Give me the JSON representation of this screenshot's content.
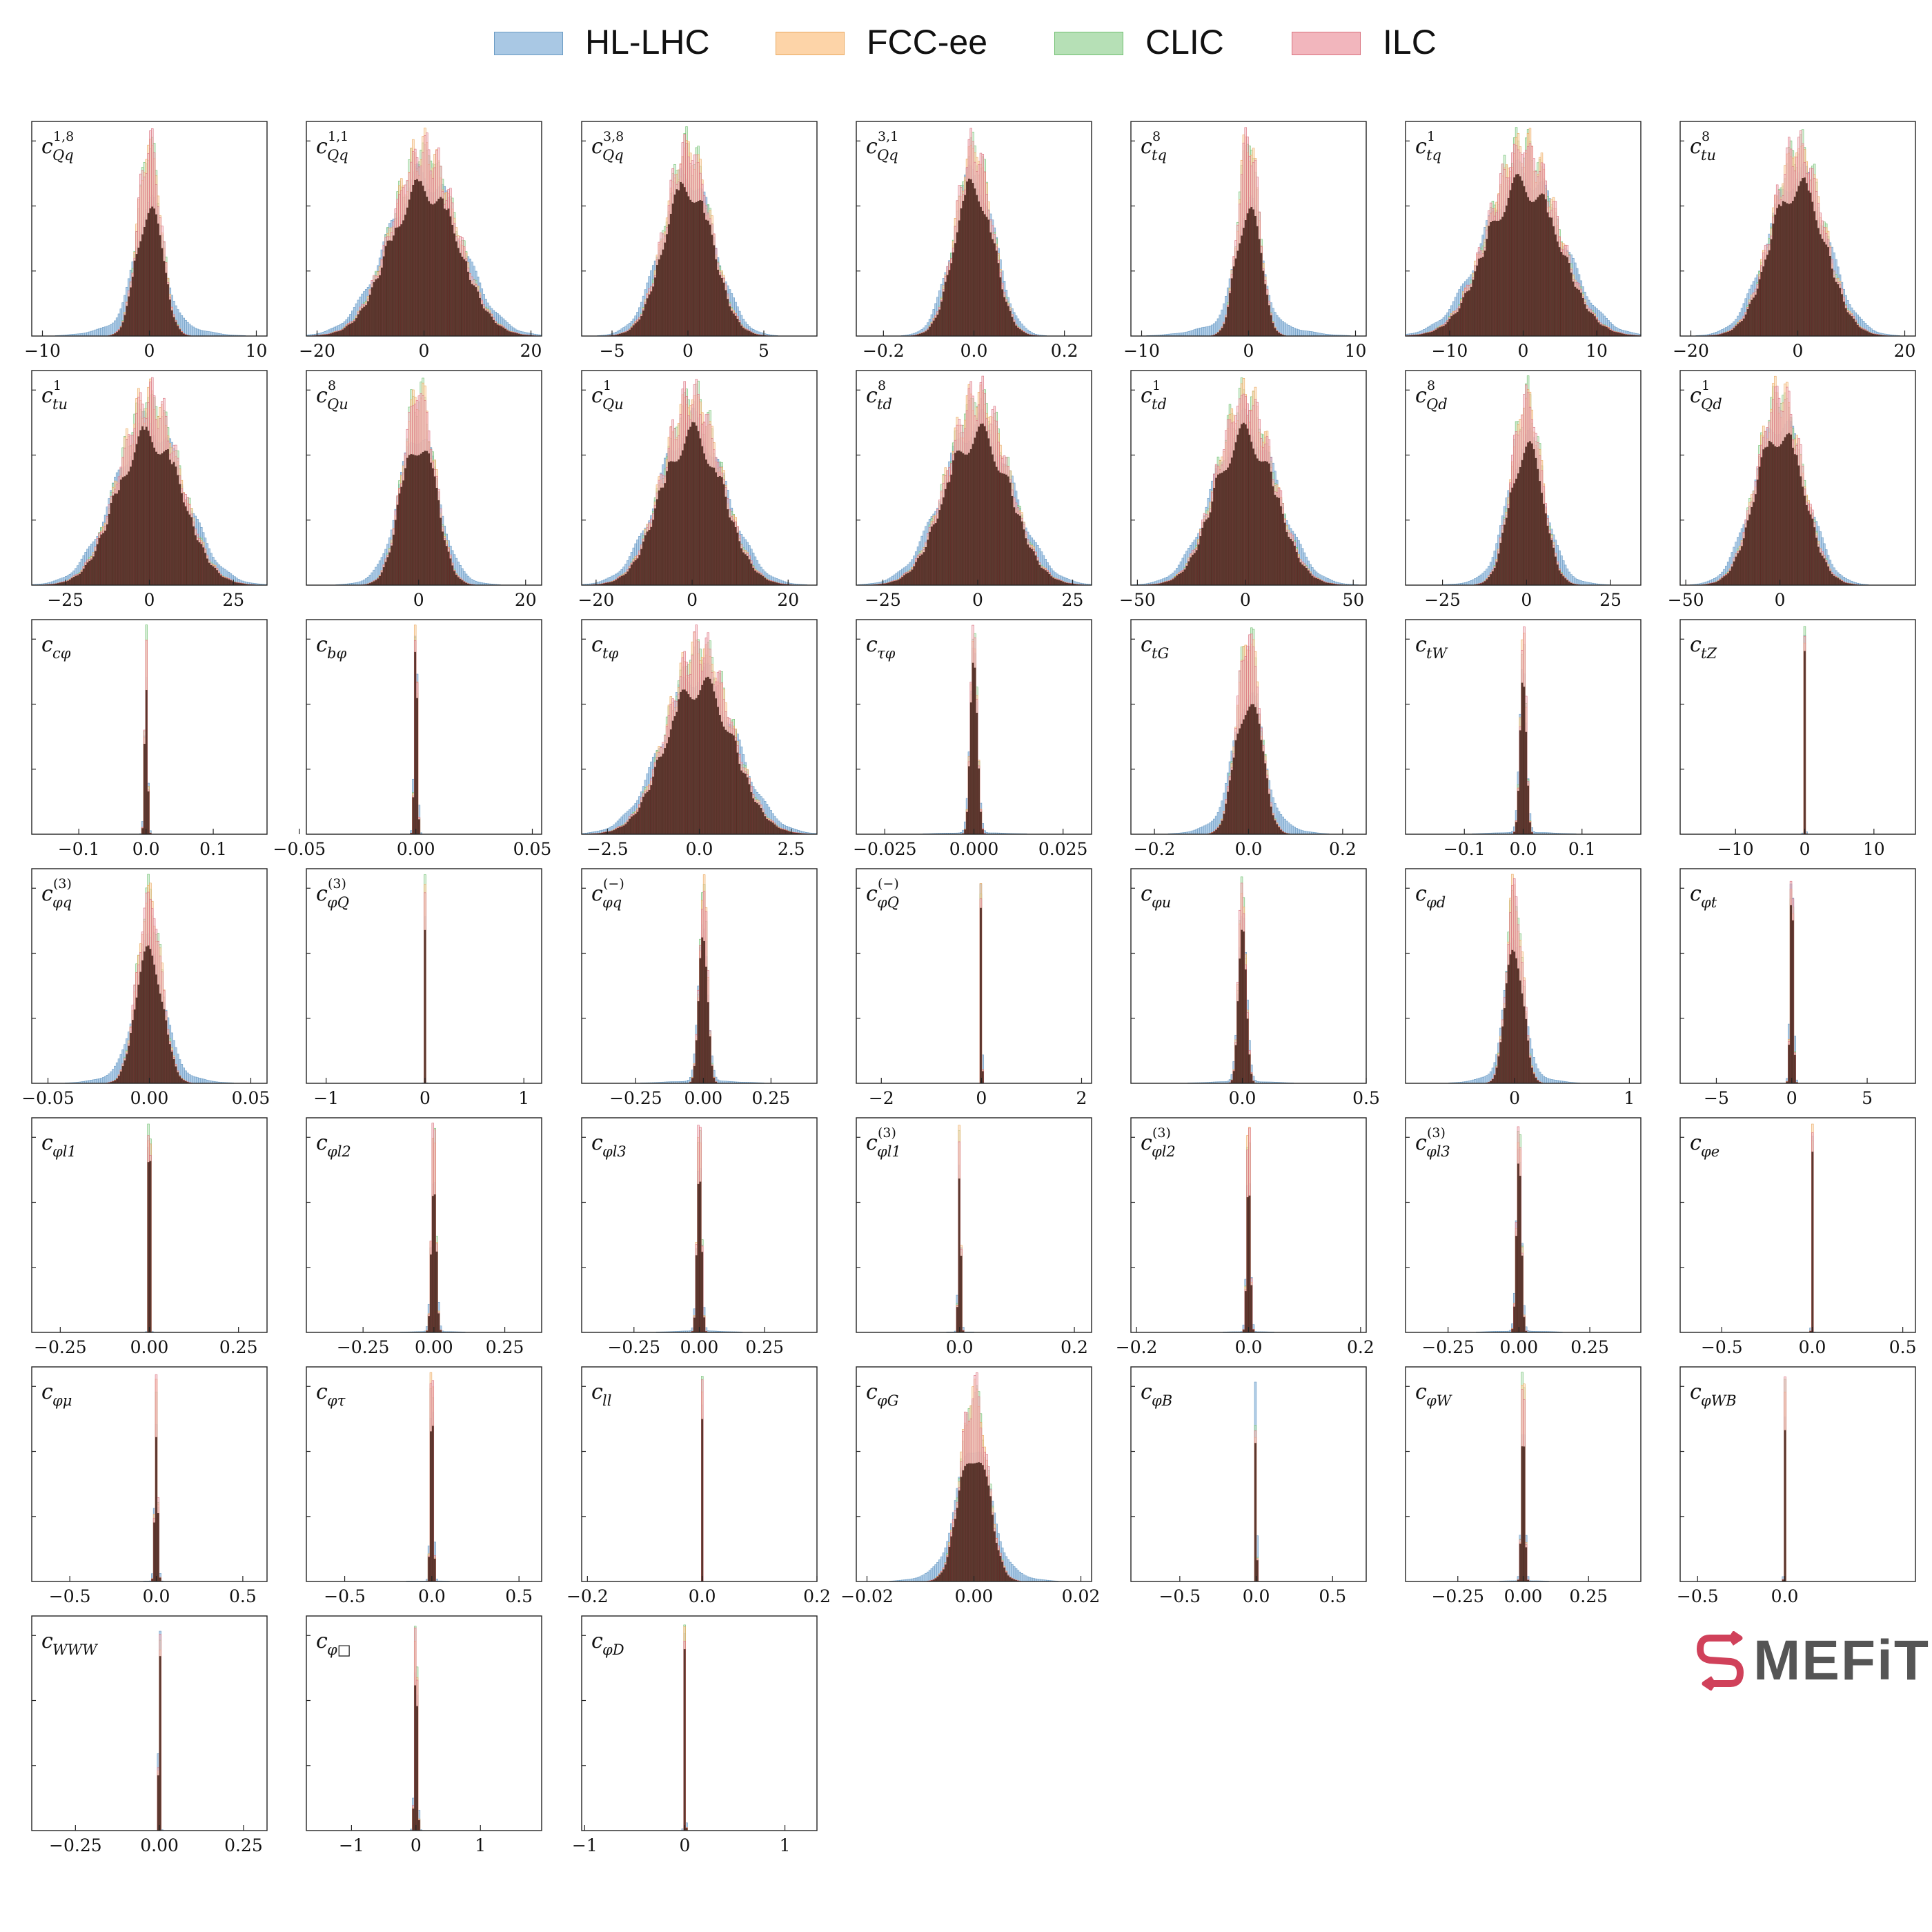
{
  "legend": [
    {
      "name": "HL-LHC",
      "color": "#a9c8e4",
      "edge": "#6a9bc4"
    },
    {
      "name": "FCC-ee",
      "color": "#fdd4a8",
      "edge": "#e8a85e"
    },
    {
      "name": "CLIC",
      "color": "#b6e0b6",
      "edge": "#6fbf6f"
    },
    {
      "name": "ILC",
      "color": "#f2b6bd",
      "edge": "#d9707d"
    }
  ],
  "logo": {
    "text": "MEFiT"
  },
  "chart_data": [
    {
      "type": "bar",
      "label_base": "c",
      "label_sub": "Qq",
      "label_sup": "1,8",
      "xlim": [
        -11,
        11
      ],
      "ticks": [
        "-10",
        "0",
        "10"
      ],
      "tick_values": [
        -10,
        0,
        10
      ],
      "sigma_wide": 3.2,
      "sigma_narrow": 1.1,
      "tail": 0.3
    },
    {
      "type": "bar",
      "label_base": "c",
      "label_sub": "Qq",
      "label_sup": "1,1",
      "xlim": [
        -22,
        22
      ],
      "ticks": [
        "-20",
        "0",
        "20"
      ],
      "tick_values": [
        -20,
        0,
        20
      ],
      "sigma_wide": 6.5,
      "sigma_narrow": 6.0,
      "tail": 0.0
    },
    {
      "type": "bar",
      "label_base": "c",
      "label_sub": "Qq",
      "label_sup": "3,8",
      "xlim": [
        -7,
        8.5
      ],
      "ticks": [
        "-5",
        "0",
        "5"
      ],
      "tick_values": [
        -5,
        0,
        5
      ],
      "sigma_wide": 1.8,
      "sigma_narrow": 1.5,
      "tail": 0.0
    },
    {
      "type": "bar",
      "label_base": "c",
      "label_sub": "Qq",
      "label_sup": "3,1",
      "xlim": [
        -0.26,
        0.26
      ],
      "ticks": [
        "-0.2",
        "0.0",
        "0.2"
      ],
      "tick_values": [
        -0.2,
        0,
        0.2
      ],
      "sigma_wide": 0.07,
      "sigma_narrow": 0.04,
      "tail": 0.0
    },
    {
      "type": "bar",
      "label_base": "c",
      "label_sub": "tq",
      "label_sup": "8",
      "xlim": [
        -11,
        11
      ],
      "ticks": [
        "-10",
        "0",
        "10"
      ],
      "tick_values": [
        -10,
        0,
        10
      ],
      "sigma_wide": 3.5,
      "sigma_narrow": 1.0,
      "tail": 0.3
    },
    {
      "type": "bar",
      "label_base": "c",
      "label_sub": "tq",
      "label_sup": "1",
      "xlim": [
        -16,
        16
      ],
      "ticks": [
        "-10",
        "0",
        "10"
      ],
      "tick_values": [
        -10,
        0,
        10
      ],
      "sigma_wide": 5.0,
      "sigma_narrow": 4.6,
      "tail": 0.0
    },
    {
      "type": "bar",
      "label_base": "c",
      "label_sub": "tu",
      "label_sup": "8",
      "xlim": [
        -22,
        22
      ],
      "ticks": [
        "-20",
        "0",
        "20"
      ],
      "tick_values": [
        -20,
        0,
        20
      ],
      "sigma_wide": 6.0,
      "sigma_narrow": 4.8,
      "tail": 0.0
    },
    {
      "type": "bar",
      "label_base": "c",
      "label_sub": "tu",
      "label_sup": "1",
      "xlim": [
        -35,
        35
      ],
      "ticks": [
        "-25",
        "0",
        "25"
      ],
      "tick_values": [
        -25,
        0,
        25
      ],
      "sigma_wide": 10.0,
      "sigma_narrow": 9.0,
      "tail": 0.0
    },
    {
      "type": "bar",
      "label_base": "c",
      "label_sub": "Qu",
      "label_sup": "8",
      "xlim": [
        -21,
        23
      ],
      "ticks": [
        "0",
        "20"
      ],
      "tick_values": [
        0,
        20
      ],
      "sigma_wide": 5.5,
      "sigma_narrow": 3.0,
      "tail": 0.2
    },
    {
      "type": "bar",
      "label_base": "c",
      "label_sub": "Qu",
      "label_sup": "1",
      "xlim": [
        -23,
        26
      ],
      "ticks": [
        "-20",
        "0",
        "20"
      ],
      "tick_values": [
        -20,
        0,
        20
      ],
      "sigma_wide": 7.0,
      "sigma_narrow": 6.0,
      "tail": 0.0
    },
    {
      "type": "bar",
      "label_base": "c",
      "label_sub": "td",
      "label_sup": "8",
      "xlim": [
        -32,
        30
      ],
      "ticks": [
        "-25",
        "0",
        "25"
      ],
      "tick_values": [
        -25,
        0,
        25
      ],
      "sigma_wide": 9.0,
      "sigma_narrow": 8.0,
      "tail": 0.0
    },
    {
      "type": "bar",
      "label_base": "c",
      "label_sub": "td",
      "label_sup": "1",
      "xlim": [
        -53,
        56
      ],
      "ticks": [
        "-50",
        "0",
        "50"
      ],
      "tick_values": [
        -50,
        0,
        50
      ],
      "sigma_wide": 15.0,
      "sigma_narrow": 13.0,
      "tail": 0.0
    },
    {
      "type": "bar",
      "label_base": "c",
      "label_sub": "Qd",
      "label_sup": "8",
      "xlim": [
        -36,
        34
      ],
      "ticks": [
        "-25",
        "0",
        "25"
      ],
      "tick_values": [
        -25,
        0,
        25
      ],
      "sigma_wide": 9.0,
      "sigma_narrow": 4.5,
      "tail": 0.2
    },
    {
      "type": "bar",
      "label_base": "c",
      "label_sub": "Qd",
      "label_sup": "1",
      "xlim": [
        -53,
        72
      ],
      "ticks": [
        "-50",
        "0"
      ],
      "tick_values": [
        -50,
        0
      ],
      "sigma_wide": 15.0,
      "sigma_narrow": 12.0,
      "tail": 0.0
    },
    {
      "type": "bar",
      "label_base": "c",
      "label_sub": "cφ",
      "label_sup": "",
      "xlim": [
        -0.17,
        0.18
      ],
      "ticks": [
        "-0.1",
        "0.0",
        "0.1"
      ],
      "tick_values": [
        -0.1,
        0,
        0.1
      ],
      "sigma_wide": 0.05,
      "sigma_narrow": 0.002,
      "tail": 0.03
    },
    {
      "type": "bar",
      "label_base": "c",
      "label_sub": "bφ",
      "label_sup": "",
      "xlim": [
        -0.047,
        0.054
      ],
      "ticks": [
        "-0.05",
        "0.00",
        "0.05"
      ],
      "tick_values": [
        -0.05,
        0,
        0.05
      ],
      "sigma_wide": 0.015,
      "sigma_narrow": 0.0006,
      "tail": 0.03
    },
    {
      "type": "bar",
      "label_base": "c",
      "label_sub": "tφ",
      "label_sup": "",
      "xlim": [
        -3.2,
        3.2
      ],
      "ticks": [
        "-2.5",
        "0.0",
        "2.5"
      ],
      "tick_values": [
        -2.5,
        0,
        2.5
      ],
      "sigma_wide": 0.9,
      "sigma_narrow": 0.85,
      "tail": 0.0
    },
    {
      "type": "bar",
      "label_base": "c",
      "label_sub": "τφ",
      "label_sup": "",
      "xlim": [
        -0.033,
        0.033
      ],
      "ticks": [
        "-0.025",
        "0.000",
        "0.025"
      ],
      "tick_values": [
        -0.025,
        0,
        0.025
      ],
      "sigma_wide": 0.009,
      "sigma_narrow": 0.0009,
      "tail": 0.07
    },
    {
      "type": "bar",
      "label_base": "c",
      "label_sub": "tG",
      "label_sup": "",
      "xlim": [
        -0.25,
        0.25
      ],
      "ticks": [
        "-0.2",
        "0.0",
        "0.2"
      ],
      "tick_values": [
        -0.2,
        0,
        0.2
      ],
      "sigma_wide": 0.06,
      "sigma_narrow": 0.025,
      "tail": 0.3
    },
    {
      "type": "bar",
      "label_base": "c",
      "label_sub": "tW",
      "label_sup": "",
      "xlim": [
        -0.2,
        0.2
      ],
      "ticks": [
        "-0.1",
        "0.0",
        "0.1"
      ],
      "tick_values": [
        -0.1,
        0,
        0.1
      ],
      "sigma_wide": 0.05,
      "sigma_narrow": 0.005,
      "tail": 0.1
    },
    {
      "type": "bar",
      "label_base": "c",
      "label_sub": "tZ",
      "label_sup": "",
      "xlim": [
        -18,
        16
      ],
      "ticks": [
        "-10",
        "0",
        "10"
      ],
      "tick_values": [
        -10,
        0,
        10
      ],
      "sigma_wide": 3.0,
      "sigma_narrow": 0.08,
      "tail": 0.0
    },
    {
      "type": "bar",
      "label_base": "c",
      "label_sub": "φq",
      "label_sup": "(3)",
      "xlim": [
        -0.058,
        0.058
      ],
      "ticks": [
        "-0.05",
        "0.00",
        "0.05"
      ],
      "tick_values": [
        -0.05,
        0,
        0.05
      ],
      "sigma_wide": 0.015,
      "sigma_narrow": 0.006,
      "tail": 0.25
    },
    {
      "type": "bar",
      "label_base": "c",
      "label_sub": "φQ",
      "label_sup": "(3)",
      "xlim": [
        -1.2,
        1.18
      ],
      "ticks": [
        "-1",
        "0",
        "1"
      ],
      "tick_values": [
        -1,
        0,
        1
      ],
      "sigma_wide": 0.35,
      "sigma_narrow": 0.005,
      "tail": 0.02
    },
    {
      "type": "bar",
      "label_base": "c",
      "label_sub": "φq",
      "label_sup": "(−)",
      "xlim": [
        -0.45,
        0.42
      ],
      "ticks": [
        "-0.25",
        "0.00",
        "0.25"
      ],
      "tick_values": [
        -0.25,
        0,
        0.25
      ],
      "sigma_wide": 0.12,
      "sigma_narrow": 0.015,
      "tail": 0.1
    },
    {
      "type": "bar",
      "label_base": "c",
      "label_sub": "φQ",
      "label_sup": "(−)",
      "xlim": [
        -2.5,
        2.2
      ],
      "ticks": [
        "-2",
        "0",
        "2"
      ],
      "tick_values": [
        -2,
        0,
        2
      ],
      "sigma_wide": 0.7,
      "sigma_narrow": 0.01,
      "tail": 0.0
    },
    {
      "type": "bar",
      "label_base": "c",
      "label_sub": "φu",
      "label_sup": "",
      "xlim": [
        -0.45,
        0.5
      ],
      "ticks": [
        "0.0",
        "0.5"
      ],
      "tick_values": [
        0,
        0.5
      ],
      "sigma_wide": 0.12,
      "sigma_narrow": 0.015,
      "tail": 0.08
    },
    {
      "type": "bar",
      "label_base": "c",
      "label_sub": "φd",
      "label_sup": "",
      "xlim": [
        -0.95,
        1.1
      ],
      "ticks": [
        "0",
        "1"
      ],
      "tick_values": [
        0,
        1
      ],
      "sigma_wide": 0.22,
      "sigma_narrow": 0.07,
      "tail": 0.2
    },
    {
      "type": "bar",
      "label_base": "c",
      "label_sub": "φt",
      "label_sup": "",
      "xlim": [
        -7.4,
        8.2
      ],
      "ticks": [
        "-5",
        "0",
        "5"
      ],
      "tick_values": [
        -5,
        0,
        5
      ],
      "sigma_wide": 2.0,
      "sigma_narrow": 0.1,
      "tail": 0.0
    },
    {
      "type": "bar",
      "label_base": "c",
      "label_sub": "φl1",
      "label_sup": "",
      "xlim": [
        -0.33,
        0.33
      ],
      "ticks": [
        "-0.25",
        "0.00",
        "0.25"
      ],
      "tick_values": [
        -0.25,
        0,
        0.25
      ],
      "sigma_wide": 0.08,
      "sigma_narrow": 0.002,
      "tail": 0.02
    },
    {
      "type": "bar",
      "label_base": "c",
      "label_sub": "φl2",
      "label_sup": "",
      "xlim": [
        -0.45,
        0.38
      ],
      "ticks": [
        "-0.25",
        "0.00",
        "0.25"
      ],
      "tick_values": [
        -0.25,
        0,
        0.25
      ],
      "sigma_wide": 0.1,
      "sigma_narrow": 0.008,
      "tail": 0.05
    },
    {
      "type": "bar",
      "label_base": "c",
      "label_sub": "φl3",
      "label_sup": "",
      "xlim": [
        -0.45,
        0.45
      ],
      "ticks": [
        "-0.25",
        "0.00",
        "0.25"
      ],
      "tick_values": [
        -0.25,
        0,
        0.25
      ],
      "sigma_wide": 0.1,
      "sigma_narrow": 0.008,
      "tail": 0.08
    },
    {
      "type": "bar",
      "label_base": "c",
      "label_sub": "φl1",
      "label_sup": "(3)",
      "xlim": [
        -0.18,
        0.23
      ],
      "ticks": [
        "0.0",
        "0.2"
      ],
      "tick_values": [
        0,
        0.2
      ],
      "sigma_wide": 0.04,
      "sigma_narrow": 0.002,
      "tail": 0.04
    },
    {
      "type": "bar",
      "label_base": "c",
      "label_sub": "φl2",
      "label_sup": "(3)",
      "xlim": [
        -0.21,
        0.21
      ],
      "ticks": [
        "-0.2",
        "0.0",
        "0.2"
      ],
      "tick_values": [
        -0.2,
        0,
        0.2
      ],
      "sigma_wide": 0.05,
      "sigma_narrow": 0.003,
      "tail": 0.05
    },
    {
      "type": "bar",
      "label_base": "c",
      "label_sub": "φl3",
      "label_sup": "(3)",
      "xlim": [
        -0.4,
        0.43
      ],
      "ticks": [
        "-0.25",
        "0.00",
        "0.25"
      ],
      "tick_values": [
        -0.25,
        0,
        0.25
      ],
      "sigma_wide": 0.1,
      "sigma_narrow": 0.008,
      "tail": 0.08
    },
    {
      "type": "bar",
      "label_base": "c",
      "label_sub": "φe",
      "label_sup": "",
      "xlim": [
        -0.73,
        0.57
      ],
      "ticks": [
        "-0.5",
        "0.0",
        "0.5"
      ],
      "tick_values": [
        -0.5,
        0,
        0.5
      ],
      "sigma_wide": 0.18,
      "sigma_narrow": 0.003,
      "tail": 0.0
    },
    {
      "type": "bar",
      "label_base": "c",
      "label_sub": "φμ",
      "label_sup": "",
      "xlim": [
        -0.72,
        0.64
      ],
      "ticks": [
        "-0.5",
        "0.0",
        "0.5"
      ],
      "tick_values": [
        -0.5,
        0,
        0.5
      ],
      "sigma_wide": 0.18,
      "sigma_narrow": 0.008,
      "tail": 0.05
    },
    {
      "type": "bar",
      "label_base": "c",
      "label_sub": "φτ",
      "label_sup": "",
      "xlim": [
        -0.72,
        0.63
      ],
      "ticks": [
        "-0.5",
        "0.0",
        "0.5"
      ],
      "tick_values": [
        -0.5,
        0,
        0.5
      ],
      "sigma_wide": 0.18,
      "sigma_narrow": 0.008,
      "tail": 0.05
    },
    {
      "type": "bar",
      "label_base": "c",
      "label_sub": "ll",
      "label_sup": "",
      "xlim": [
        -0.21,
        0.2
      ],
      "ticks": [
        "-0.2",
        "0.0",
        "0.2"
      ],
      "tick_values": [
        -0.2,
        0,
        0.2
      ],
      "sigma_wide": 0.05,
      "sigma_narrow": 0.0008,
      "tail": 0.0
    },
    {
      "type": "bar",
      "label_base": "c",
      "label_sub": "φG",
      "label_sup": "",
      "xlim": [
        -0.022,
        0.022
      ],
      "ticks": [
        "-0.02",
        "0.00",
        "0.02"
      ],
      "tick_values": [
        -0.02,
        0,
        0.02
      ],
      "sigma_wide": 0.0055,
      "sigma_narrow": 0.0025,
      "tail": 0.3
    },
    {
      "type": "bar",
      "label_base": "c",
      "label_sub": "φB",
      "label_sup": "",
      "xlim": [
        -0.82,
        0.72
      ],
      "ticks": [
        "-0.5",
        "0.0",
        "0.5"
      ],
      "tick_values": [
        -0.5,
        0,
        0.5
      ],
      "sigma_wide": 0.2,
      "sigma_narrow": 0.003,
      "tail": 0.02
    },
    {
      "type": "bar",
      "label_base": "c",
      "label_sub": "φW",
      "label_sup": "",
      "xlim": [
        -0.45,
        0.45
      ],
      "ticks": [
        "-0.25",
        "0.00",
        "0.25"
      ],
      "tick_values": [
        -0.25,
        0,
        0.25
      ],
      "sigma_wide": 0.1,
      "sigma_narrow": 0.006,
      "tail": 0.05
    },
    {
      "type": "bar",
      "label_base": "c",
      "label_sub": "φWB",
      "label_sup": "",
      "xlim": [
        -0.6,
        0.75
      ],
      "ticks": [
        "-0.5",
        "0.0"
      ],
      "tick_values": [
        -0.5,
        0
      ],
      "sigma_wide": 0.15,
      "sigma_narrow": 0.003,
      "tail": 0.03
    },
    {
      "type": "bar",
      "label_base": "c",
      "label_sub": "WWW",
      "label_sup": "",
      "xlim": [
        -0.38,
        0.32
      ],
      "ticks": [
        "-0.25",
        "0.00",
        "0.25"
      ],
      "tick_values": [
        -0.25,
        0,
        0.25
      ],
      "sigma_wide": 0.08,
      "sigma_narrow": 0.002,
      "tail": 0.0
    },
    {
      "type": "bar",
      "label_base": "c",
      "label_sub": "φ□",
      "label_sup": "",
      "xlim": [
        -1.7,
        1.95
      ],
      "ticks": [
        "-1",
        "0",
        "1"
      ],
      "tick_values": [
        -1,
        0,
        1
      ],
      "sigma_wide": 0.45,
      "sigma_narrow": 0.02,
      "tail": 0.03
    },
    {
      "type": "bar",
      "label_base": "c",
      "label_sub": "φD",
      "label_sup": "",
      "xlim": [
        -1.03,
        1.32
      ],
      "ticks": [
        "-1",
        "0",
        "1"
      ],
      "tick_values": [
        -1,
        0,
        1
      ],
      "sigma_wide": 0.3,
      "sigma_narrow": 0.006,
      "tail": 0.03
    }
  ]
}
